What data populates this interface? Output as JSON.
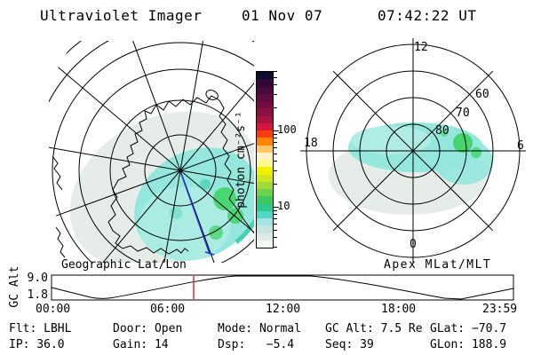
{
  "title": {
    "app": "Ultraviolet Imager",
    "date": "01 Nov 07",
    "time": "07:42:22 UT"
  },
  "colors": {
    "line": "#000000",
    "aurora_pale": "#e6ece8",
    "aurora_cyan": "#93e7dd",
    "aurora_cyan_light": "#aeece5",
    "aurora_teal": "#35cdaa",
    "aurora_green": "#3cd360",
    "track_blue": "#2a35cf",
    "marker_red": "#e03030"
  },
  "colorbar": {
    "unit": "photon cm⁻²s⁻¹",
    "tick_labels": [
      "100",
      "10"
    ],
    "y100": 147,
    "y10": 233,
    "colors": [
      "#0c0c2e",
      "#300736",
      "#47093a",
      "#5e0b3d",
      "#740d3f",
      "#8b0f41",
      "#a81442",
      "#d6163a",
      "#fb3c10",
      "#ff8400",
      "#ffc864",
      "#fff3c8",
      "#fdf892",
      "#f2f000",
      "#cfe81e",
      "#9fdc38",
      "#6cd24c",
      "#3cc85c",
      "#2ec88e",
      "#52d6c4",
      "#a4e4e0",
      "#c6e6e2",
      "#dfeae6",
      "#f6f8f6"
    ]
  },
  "geo_plot": {
    "caption": "Geographic Lat/Lon"
  },
  "apex_plot": {
    "caption": "Apex MLat/MLT",
    "mlt_top": "12",
    "mlt_left": "18",
    "mlt_right": "6",
    "mlt_bottom": "0",
    "mlat_60": "60",
    "mlat_70": "70",
    "mlat_80": "80"
  },
  "timeline": {
    "ylabel": "GC Alt",
    "ymax": "9.0",
    "ymin": "1.8",
    "xticks": [
      "00:00",
      "06:00",
      "12:00",
      "18:00",
      "23:59"
    ]
  },
  "status": {
    "row1": [
      "Flt: LBHL",
      "Door: Open",
      "Mode: Normal",
      "GC Alt: 7.5 Re",
      "GLat: −70.7"
    ],
    "row2": [
      "IP: 36.0",
      "Gain: 14",
      "Dsp:   −5.4",
      "Seq: 39",
      "GLon: 188.9"
    ]
  },
  "chart_data": [
    {
      "type": "heatmap",
      "title": "Geographic Lat/Lon",
      "projection": "southern-hemisphere polar view from satellite, Antarctica coastline overlaid",
      "grid": {
        "latitude_circles_deg": [
          80,
          70,
          60,
          50,
          40,
          30
        ],
        "meridians_every_deg": 30
      },
      "colorbar": {
        "label": "photon cm⁻²s⁻¹",
        "scale": "log",
        "ticks": [
          10,
          100
        ]
      },
      "features": [
        "auroral emission patch ~3-30 photon cm⁻²s⁻¹ centered near pole extending toward lower right",
        "brightest green patches ~30 photon cm⁻²s⁻¹ at lower right of pole",
        "blue satellite track line from pole toward lower right",
        "emission clipped by imager field-of-view limb"
      ]
    },
    {
      "type": "heatmap",
      "title": "Apex MLat/MLT",
      "grid": {
        "mlat_circles_deg": [
          80,
          70,
          60,
          50
        ],
        "mlt_spoke_labels": [
          0,
          6,
          18,
          12
        ]
      },
      "colorbar": {
        "label": "photon cm⁻²s⁻¹",
        "scale": "log",
        "ticks": [
          10,
          100
        ]
      },
      "features": [
        "auroral band poleward of 70 MLat, brightest cyan/green ~10-30 photon cm⁻²s⁻¹ near 04-08 MLT",
        "faint gray emission ~2-5 photon cm⁻²s⁻¹ filling oval toward 18 MLT"
      ]
    },
    {
      "type": "line",
      "title": "GC Alt",
      "ylabel": "GC Alt (Re)",
      "yticks": [
        1.8,
        9.0
      ],
      "xticks": [
        "00:00",
        "06:00",
        "12:00",
        "18:00",
        "23:59"
      ],
      "x_hours": [
        0,
        2,
        3.3,
        4.5,
        6,
        7.5,
        9.3,
        12,
        13.5,
        15,
        16.7,
        18.5,
        20.5,
        21.3,
        22.5,
        24
      ],
      "y_re": [
        5.7,
        2.0,
        1.8,
        3.4,
        5.9,
        7.6,
        9.0,
        9.0,
        9.0,
        7.8,
        6.2,
        4.2,
        1.8,
        1.8,
        3.2,
        5.6
      ],
      "marker": {
        "x_label": "07:42 UT",
        "y_re": 7.5,
        "color": "#e03030"
      }
    }
  ]
}
